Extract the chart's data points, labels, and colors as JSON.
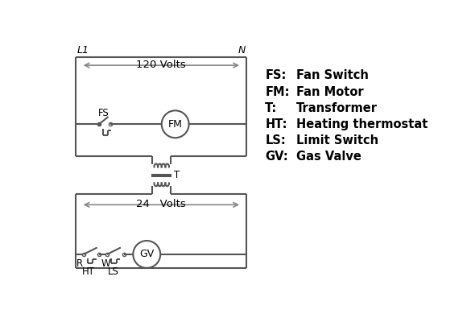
{
  "bg_color": "#ffffff",
  "line_color": "#555555",
  "text_color": "#000000",
  "legend_items": [
    [
      "FS:",
      "Fan Switch"
    ],
    [
      "FM:",
      "Fan Motor"
    ],
    [
      "T:",
      "Transformer"
    ],
    [
      "HT:",
      "Heating thermostat"
    ],
    [
      "LS:",
      "Limit Switch"
    ],
    [
      "GV:",
      "Gas Valve"
    ]
  ],
  "label_L1": "L1",
  "label_N": "N",
  "label_120V": "120 Volts",
  "label_24V": "24   Volts",
  "label_T": "T",
  "label_FS": "FS",
  "label_FM": "FM",
  "label_GV": "GV",
  "label_R": "R",
  "label_W": "W",
  "label_HT": "HT",
  "label_LS": "LS"
}
